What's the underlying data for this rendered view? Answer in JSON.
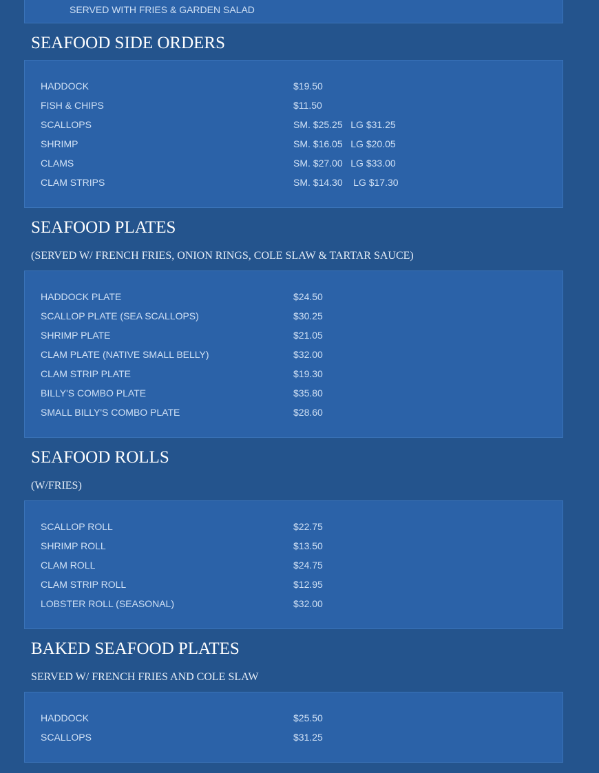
{
  "top_note": "SERVED WITH FRIES & GARDEN SALAD",
  "sections": [
    {
      "title": "SEAFOOD SIDE ORDERS",
      "subtitle": "",
      "items": [
        {
          "name": "HADDOCK",
          "price": "$19.50"
        },
        {
          "name": "FISH & CHIPS",
          "price": "$11.50"
        },
        {
          "name": "SCALLOPS",
          "price": "SM. $25.25   LG $31.25"
        },
        {
          "name": "SHRIMP",
          "price": "SM. $16.05   LG $20.05"
        },
        {
          "name": "CLAMS",
          "price": "SM. $27.00   LG $33.00"
        },
        {
          "name": "CLAM STRIPS",
          "price": "SM. $14.30    LG $17.30"
        }
      ]
    },
    {
      "title": "SEAFOOD PLATES",
      "subtitle": "(SERVED W/ FRENCH FRIES, ONION RINGS, COLE SLAW & TARTAR SAUCE)",
      "items": [
        {
          "name": "HADDOCK PLATE",
          "price": "$24.50"
        },
        {
          "name": "SCALLOP PLATE (SEA SCALLOPS)",
          "price": "$30.25"
        },
        {
          "name": "SHRIMP PLATE",
          "price": "$21.05"
        },
        {
          "name": "CLAM PLATE (NATIVE SMALL BELLY)",
          "price": "$32.00"
        },
        {
          "name": "CLAM STRIP PLATE",
          "price": "$19.30"
        },
        {
          "name": "BILLY'S COMBO PLATE",
          "price": "$35.80"
        },
        {
          "name": "SMALL BILLY'S COMBO PLATE",
          "price": "$28.60"
        }
      ]
    },
    {
      "title": "SEAFOOD ROLLS",
      "subtitle": "(W/FRIES)",
      "items": [
        {
          "name": "SCALLOP ROLL",
          "price": "$22.75"
        },
        {
          "name": "SHRIMP ROLL",
          "price": "$13.50"
        },
        {
          "name": "CLAM ROLL",
          "price": "$24.75"
        },
        {
          "name": "CLAM STRIP ROLL",
          "price": "$12.95"
        },
        {
          "name": "LOBSTER ROLL (SEASONAL)",
          "price": "$32.00"
        }
      ]
    },
    {
      "title": "BAKED SEAFOOD PLATES",
      "subtitle": "SERVED W/ FRENCH FRIES AND COLE SLAW",
      "items": [
        {
          "name": "HADDOCK",
          "price": "$25.50"
        },
        {
          "name": "SCALLOPS",
          "price": "$31.25"
        }
      ]
    }
  ]
}
